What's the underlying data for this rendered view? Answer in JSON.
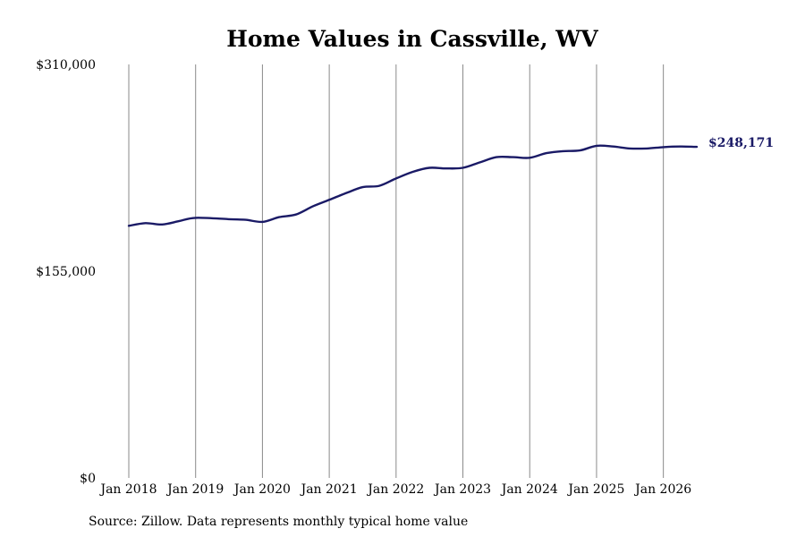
{
  "chart_data": {
    "type": "line",
    "title": "Home Values in Cassville, WV",
    "xlabel": "",
    "ylabel": "",
    "source": "Source: Zillow. Data represents monthly typical home value",
    "end_label": "$248,171",
    "line_color": "#1a1a66",
    "grid": {
      "vertical": true,
      "horizontal": false
    },
    "ylim": [
      0,
      310000
    ],
    "y_ticks": [
      {
        "value": 0,
        "label": "$0"
      },
      {
        "value": 155000,
        "label": "$155,000"
      },
      {
        "value": 310000,
        "label": "$310,000"
      }
    ],
    "xlim": [
      "2018-01",
      "2026-07"
    ],
    "x_ticks": [
      {
        "x": "2018-01",
        "label": "Jan 2018"
      },
      {
        "x": "2019-01",
        "label": "Jan 2019"
      },
      {
        "x": "2020-01",
        "label": "Jan 2020"
      },
      {
        "x": "2021-01",
        "label": "Jan 2021"
      },
      {
        "x": "2022-01",
        "label": "Jan 2022"
      },
      {
        "x": "2023-01",
        "label": "Jan 2023"
      },
      {
        "x": "2024-01",
        "label": "Jan 2024"
      },
      {
        "x": "2025-01",
        "label": "Jan 2025"
      },
      {
        "x": "2026-01",
        "label": "Jan 2026"
      }
    ],
    "series": [
      {
        "points": [
          [
            "2018-01",
            189000
          ],
          [
            "2018-04",
            191000
          ],
          [
            "2018-07",
            190000
          ],
          [
            "2018-10",
            192500
          ],
          [
            "2019-01",
            195000
          ],
          [
            "2019-07",
            194000
          ],
          [
            "2019-10",
            193500
          ],
          [
            "2020-01",
            192000
          ],
          [
            "2020-04",
            195500
          ],
          [
            "2020-07",
            197500
          ],
          [
            "2020-10",
            203500
          ],
          [
            "2021-01",
            208500
          ],
          [
            "2021-04",
            213500
          ],
          [
            "2021-07",
            218000
          ],
          [
            "2021-10",
            219000
          ],
          [
            "2022-01",
            224500
          ],
          [
            "2022-04",
            229500
          ],
          [
            "2022-07",
            232500
          ],
          [
            "2022-10",
            232000
          ],
          [
            "2023-01",
            232500
          ],
          [
            "2023-04",
            236500
          ],
          [
            "2023-07",
            240500
          ],
          [
            "2023-10",
            240500
          ],
          [
            "2024-01",
            240000
          ],
          [
            "2024-04",
            243500
          ],
          [
            "2024-07",
            245000
          ],
          [
            "2024-10",
            245500
          ],
          [
            "2025-01",
            249000
          ],
          [
            "2025-04",
            248500
          ],
          [
            "2025-07",
            247000
          ],
          [
            "2025-10",
            247000
          ],
          [
            "2026-01",
            248000
          ],
          [
            "2026-04",
            248500
          ],
          [
            "2026-07",
            248171
          ]
        ]
      }
    ]
  }
}
